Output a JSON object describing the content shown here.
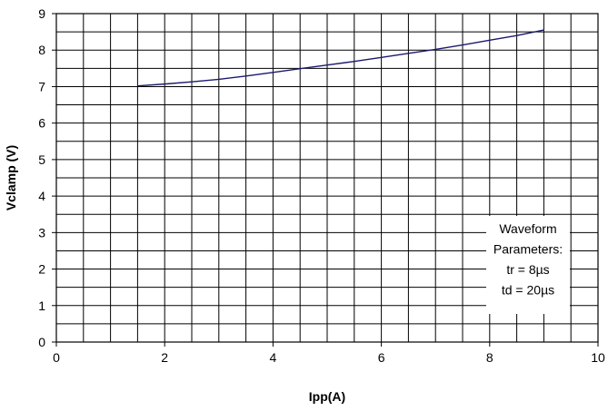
{
  "chart_data": {
    "type": "line",
    "title": "",
    "xlabel": "Ipp(A)",
    "ylabel": "Vclamp (V)",
    "xlim": [
      0,
      10
    ],
    "ylim": [
      0,
      9
    ],
    "x_ticks": [
      "0",
      "2",
      "4",
      "6",
      "8",
      "10"
    ],
    "y_ticks": [
      "0",
      "1",
      "2",
      "3",
      "4",
      "5",
      "6",
      "7",
      "8",
      "9"
    ],
    "x_minor_step": 0.5,
    "y_minor_step": 0.5,
    "grid": true,
    "series": [
      {
        "color": "#1a1a6e",
        "x": [
          1.5,
          2.0,
          2.5,
          3.0,
          3.5,
          4.0,
          4.5,
          5.0,
          5.5,
          6.0,
          6.5,
          7.0,
          7.5,
          8.0,
          8.5,
          9.0
        ],
        "y": [
          7.02,
          7.07,
          7.13,
          7.2,
          7.29,
          7.39,
          7.49,
          7.59,
          7.69,
          7.8,
          7.91,
          8.02,
          8.14,
          8.27,
          8.4,
          8.55
        ]
      }
    ],
    "annotation": {
      "lines": [
        "Waveform",
        "Parameters:",
        "tr = 8µs",
        "td = 20µs"
      ],
      "position": "bottom-right"
    }
  }
}
